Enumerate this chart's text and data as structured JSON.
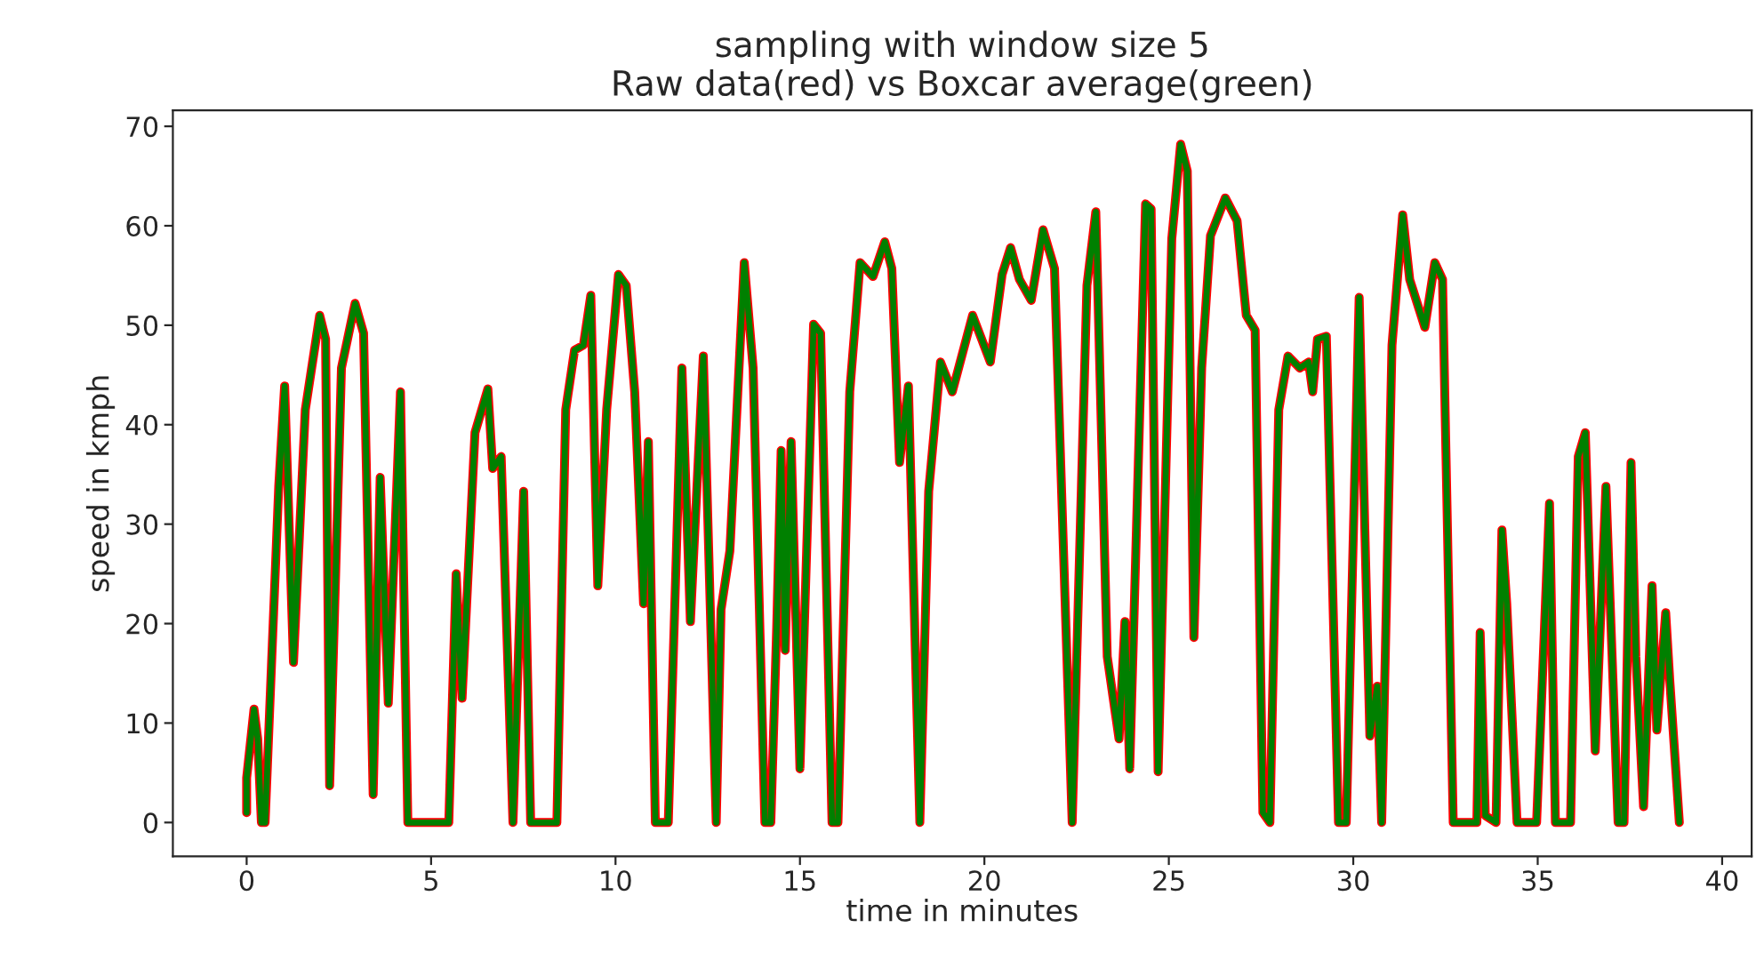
{
  "chart_data": {
    "type": "line",
    "title": "sampling with window size 5\nRaw data(red) vs Boxcar average(green)",
    "xlabel": "time in minutes",
    "ylabel": "speed in kmph",
    "x": [
      0,
      0,
      0.2,
      0.3,
      0.4,
      0.5,
      0.87,
      1.03,
      1.27,
      1.59,
      1.98,
      2.14,
      2.25,
      2.57,
      2.94,
      3.17,
      3.43,
      3.62,
      3.84,
      4.17,
      4.37,
      5.48,
      5.68,
      5.84,
      6.19,
      6.54,
      6.67,
      6.9,
      7.22,
      7.51,
      7.7,
      8.41,
      8.65,
      8.89,
      9.13,
      9.33,
      9.52,
      9.76,
      10.08,
      10.29,
      10.52,
      10.76,
      10.89,
      11.08,
      11.43,
      11.8,
      12.03,
      12.38,
      12.73,
      12.86,
      13.1,
      13.49,
      13.73,
      14.05,
      14.21,
      14.37,
      14.49,
      14.6,
      14.76,
      15,
      15.37,
      15.56,
      15.87,
      16.03,
      16.35,
      16.63,
      16.98,
      17.3,
      17.49,
      17.7,
      17.94,
      18.25,
      18.49,
      18.81,
      19.13,
      19.68,
      20.16,
      20.48,
      20.71,
      20.95,
      21.27,
      21.59,
      21.9,
      22.38,
      22.78,
      23.02,
      23.33,
      23.65,
      23.81,
      23.94,
      24.37,
      24.52,
      24.71,
      25.08,
      25.32,
      25.5,
      25.68,
      25.89,
      26.13,
      26.53,
      26.85,
      27.1,
      27.34,
      27.55,
      27.74,
      27.98,
      28.23,
      28.55,
      28.79,
      28.9,
      29.03,
      29.27,
      29.6,
      29.81,
      30.16,
      30.45,
      30.65,
      30.77,
      31.05,
      31.34,
      31.53,
      31.94,
      32.21,
      32.42,
      32.71,
      33.35,
      33.44,
      33.58,
      33.87,
      34.03,
      34.16,
      34.44,
      34.97,
      35.32,
      35.48,
      35.89,
      36.1,
      36.29,
      36.56,
      36.85,
      37.18,
      37.34,
      37.53,
      37.66,
      37.87,
      38.1,
      38.23,
      38.47,
      38.58,
      38.84
    ],
    "series": [
      {
        "color": "#ff0000",
        "values": [
          1,
          4.5,
          11.4,
          8.4,
          0,
          0,
          33.8,
          43.9,
          16.1,
          41.5,
          51,
          48.6,
          3.7,
          45.7,
          52.2,
          49.2,
          2.8,
          34.7,
          12,
          43.3,
          0,
          0,
          25,
          12.5,
          39.2,
          43.6,
          35.6,
          36.8,
          0,
          33.3,
          0,
          0,
          41.5,
          47.5,
          48,
          53,
          23.8,
          41.5,
          55.1,
          54,
          43.3,
          22,
          38.3,
          0,
          0,
          45.7,
          20.2,
          46.9,
          0,
          21.4,
          27.3,
          56.3,
          45.7,
          0,
          0,
          19.6,
          37.4,
          17.3,
          38.3,
          5.4,
          50.1,
          49.2,
          0,
          0,
          43.3,
          56.3,
          54.9,
          58.4,
          55.7,
          36.2,
          43.9,
          0,
          33.3,
          46.3,
          43.3,
          51,
          46.3,
          55.1,
          57.8,
          54.6,
          52.5,
          59.6,
          55.7,
          0,
          54,
          61.4,
          16.7,
          8.4,
          20.2,
          5.4,
          62.2,
          61.7,
          5.1,
          58.7,
          68.2,
          65.5,
          18.6,
          45.7,
          59,
          62.8,
          60.5,
          51,
          49.5,
          1,
          0,
          41.5,
          46.9,
          45.7,
          46.3,
          43.3,
          48.6,
          48.9,
          0,
          0,
          52.8,
          8.7,
          13.7,
          0,
          48,
          61.1,
          54.6,
          49.8,
          56.3,
          54.6,
          0,
          0,
          19.1,
          0.7,
          0,
          29.4,
          22,
          0,
          0,
          32.1,
          0,
          0,
          36.8,
          39.2,
          7.2,
          33.8,
          0,
          0,
          36.2,
          16.7,
          1.6,
          23.8,
          9.3,
          21.1,
          14.3,
          0
        ]
      },
      {
        "color": "#008000",
        "values": [
          1,
          4.5,
          11.4,
          8.4,
          0,
          0,
          33.8,
          43.9,
          16.1,
          41.5,
          51,
          48.6,
          3.7,
          45.7,
          52.2,
          49.2,
          2.8,
          34.7,
          12,
          43.3,
          0,
          0,
          25,
          12.5,
          39.2,
          43.6,
          35.6,
          36.8,
          0,
          33.3,
          0,
          0,
          41.5,
          47.5,
          48,
          53,
          23.8,
          41.5,
          55.1,
          54,
          43.3,
          22,
          38.3,
          0,
          0,
          45.7,
          20.2,
          46.9,
          0,
          21.4,
          27.3,
          56.3,
          45.7,
          0,
          0,
          19.6,
          37.4,
          17.3,
          38.3,
          5.4,
          50.1,
          49.2,
          0,
          0,
          43.3,
          56.3,
          54.9,
          58.4,
          55.7,
          36.2,
          43.9,
          0,
          33.3,
          46.3,
          43.3,
          51,
          46.3,
          55.1,
          57.8,
          54.6,
          52.5,
          59.6,
          55.7,
          0,
          54,
          61.4,
          16.7,
          8.4,
          20.2,
          5.4,
          62.2,
          61.7,
          5.1,
          58.7,
          68.2,
          65.5,
          18.6,
          45.7,
          59,
          62.8,
          60.5,
          51,
          49.5,
          1,
          0,
          41.5,
          46.9,
          45.7,
          46.3,
          43.3,
          48.6,
          48.9,
          0,
          0,
          52.8,
          8.7,
          13.7,
          0,
          48,
          61.1,
          54.6,
          49.8,
          56.3,
          54.6,
          0,
          0,
          19.1,
          0.7,
          0,
          29.4,
          22,
          0,
          0,
          32.1,
          0,
          0,
          36.8,
          39.2,
          7.2,
          33.8,
          0,
          0,
          36.2,
          16.7,
          1.6,
          23.8,
          9.3,
          21.1,
          14.3,
          0
        ]
      }
    ],
    "xlim": [
      -2,
      40.8
    ],
    "xticks": [
      0,
      5,
      10,
      15,
      20,
      25,
      30,
      35,
      40
    ],
    "ylim": [
      -3.4,
      71.6
    ],
    "yticks": [
      0,
      10,
      20,
      30,
      40,
      50,
      60,
      70
    ],
    "grid": false
  }
}
